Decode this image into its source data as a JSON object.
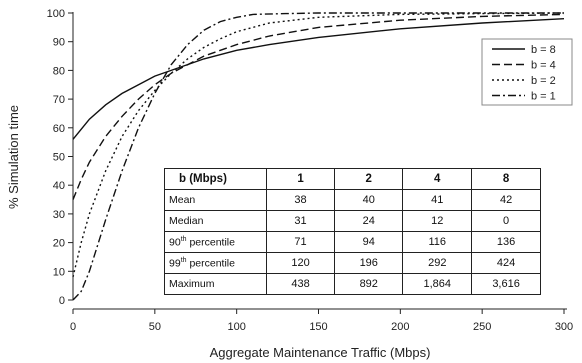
{
  "chart_data": {
    "type": "line",
    "title": "",
    "xlabel": "Aggregate Maintenance Traffic (Mbps)",
    "ylabel": "% Simulation time",
    "xlim": [
      0,
      300
    ],
    "ylim": [
      0,
      100
    ],
    "xticks": [
      "0",
      "50",
      "100",
      "150",
      "200",
      "250",
      "300"
    ],
    "yticks": [
      "0",
      "10",
      "20",
      "30",
      "40",
      "50",
      "60",
      "70",
      "80",
      "90",
      "100"
    ],
    "grid": false,
    "legend_position": "right",
    "series": [
      {
        "name": "b = 8",
        "dash": "solid",
        "x": [
          0,
          10,
          20,
          30,
          40,
          50,
          60,
          80,
          100,
          120,
          150,
          200,
          250,
          300
        ],
        "y": [
          56,
          63,
          68,
          72,
          75,
          78,
          80,
          84,
          87,
          89,
          91.5,
          94.5,
          96.5,
          98
        ]
      },
      {
        "name": "b = 4",
        "dash": "dashed",
        "x": [
          0,
          5,
          10,
          20,
          30,
          40,
          50,
          60,
          70,
          80,
          100,
          120,
          150,
          200,
          250,
          300
        ],
        "y": [
          35,
          42,
          48,
          57,
          64,
          70,
          75,
          79,
          82,
          85,
          89,
          92,
          95,
          97.5,
          98.8,
          99.5
        ]
      },
      {
        "name": "b = 2",
        "dash": "dotted",
        "x": [
          0,
          5,
          10,
          20,
          30,
          40,
          50,
          60,
          70,
          80,
          90,
          100,
          120,
          150,
          200,
          250,
          300
        ],
        "y": [
          8,
          20,
          30,
          45,
          57,
          66,
          73,
          79,
          84,
          88,
          91,
          93.5,
          96.5,
          98.5,
          99.5,
          99.8,
          100
        ]
      },
      {
        "name": "b = 1",
        "dash": "dashdot",
        "x": [
          0,
          5,
          10,
          20,
          30,
          40,
          50,
          60,
          70,
          80,
          90,
          100,
          110,
          130,
          150,
          200,
          300
        ],
        "y": [
          0,
          3,
          10,
          28,
          45,
          60,
          72,
          82,
          89,
          94,
          97,
          98.5,
          99.5,
          99.8,
          100,
          100,
          100
        ]
      }
    ]
  },
  "table": {
    "corner": "b (Mbps)",
    "columns": [
      "1",
      "2",
      "4",
      "8"
    ],
    "rows": [
      {
        "label": "Mean",
        "values": [
          "38",
          "40",
          "41",
          "42"
        ]
      },
      {
        "label": "Median",
        "values": [
          "31",
          "24",
          "12",
          "0"
        ]
      },
      {
        "label_base": "90",
        "label_sup": "th",
        "label_rest": " percentile",
        "values": [
          "71",
          "94",
          "116",
          "136"
        ]
      },
      {
        "label_base": "99",
        "label_sup": "th",
        "label_rest": " percentile",
        "values": [
          "120",
          "196",
          "292",
          "424"
        ]
      },
      {
        "label": "Maximum",
        "values": [
          "438",
          "892",
          "1,864",
          "3,616"
        ]
      }
    ]
  }
}
